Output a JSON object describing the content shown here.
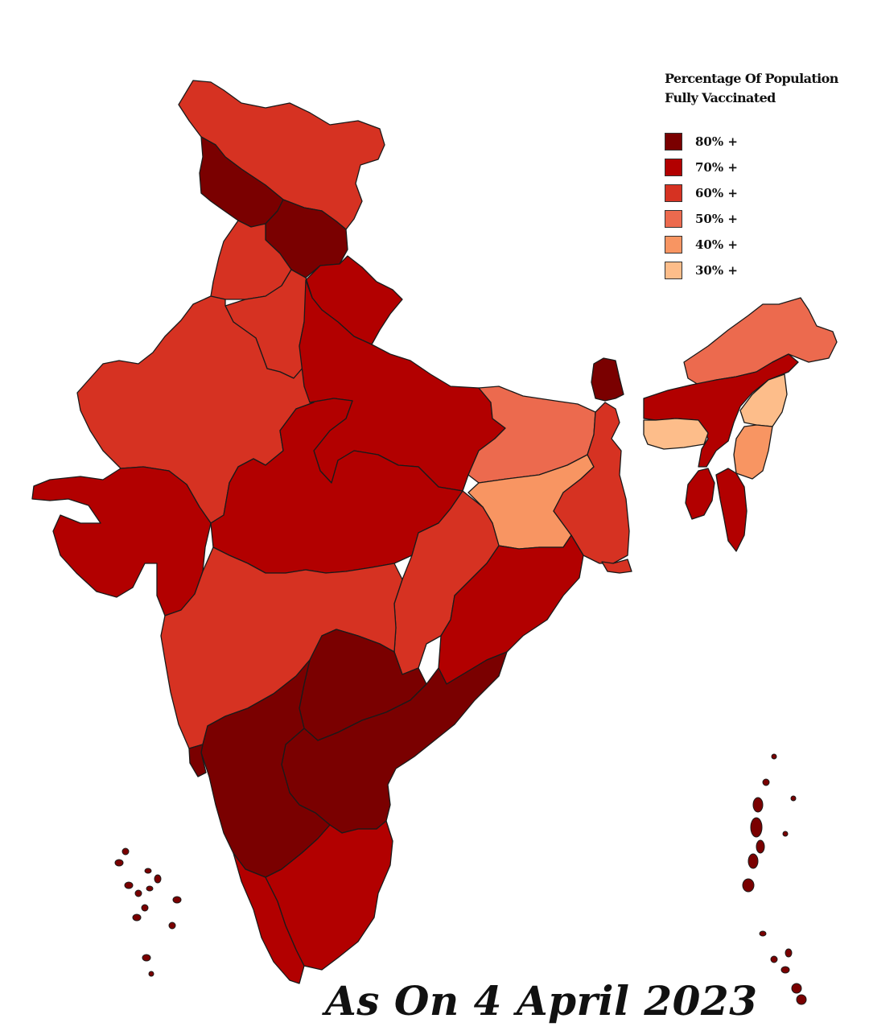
{
  "legend": {
    "title_line1": "Percentage Of Population",
    "title_line2": "Fully Vaccinated",
    "items": [
      {
        "label": "80% +",
        "color": "#7a0000"
      },
      {
        "label": "70% +",
        "color": "#b20000"
      },
      {
        "label": "60% +",
        "color": "#d63222"
      },
      {
        "label": "50% +",
        "color": "#ec6a4e"
      },
      {
        "label": "40% +",
        "color": "#f89562"
      },
      {
        "label": "30% +",
        "color": "#fdbd8a"
      }
    ]
  },
  "caption": "As On 4 April 2023",
  "regions": [
    {
      "id": "ladakh",
      "band": "60% +"
    },
    {
      "id": "jammu-kashmir",
      "band": "80% +"
    },
    {
      "id": "himachal-pradesh",
      "band": "80% +"
    },
    {
      "id": "punjab",
      "band": "60% +"
    },
    {
      "id": "uttarakhand",
      "band": "70% +"
    },
    {
      "id": "haryana",
      "band": "60% +"
    },
    {
      "id": "rajasthan",
      "band": "60% +"
    },
    {
      "id": "gujarat",
      "band": "70% +"
    },
    {
      "id": "uttar-pradesh",
      "band": "70% +"
    },
    {
      "id": "madhya-pradesh",
      "band": "70% +"
    },
    {
      "id": "bihar",
      "band": "50% +"
    },
    {
      "id": "jharkhand",
      "band": "40% +"
    },
    {
      "id": "west-bengal",
      "band": "60% +"
    },
    {
      "id": "chhattisgarh",
      "band": "60% +"
    },
    {
      "id": "odisha",
      "band": "70% +"
    },
    {
      "id": "maharashtra",
      "band": "60% +"
    },
    {
      "id": "telangana",
      "band": "80% +"
    },
    {
      "id": "andhra-pradesh",
      "band": "80% +"
    },
    {
      "id": "karnataka",
      "band": "80% +"
    },
    {
      "id": "goa",
      "band": "80% +"
    },
    {
      "id": "kerala",
      "band": "70% +"
    },
    {
      "id": "tamil-nadu",
      "band": "70% +"
    },
    {
      "id": "sikkim",
      "band": "80% +"
    },
    {
      "id": "arunachal-pradesh",
      "band": "50% +"
    },
    {
      "id": "assam",
      "band": "70% +"
    },
    {
      "id": "meghalaya",
      "band": "30% +"
    },
    {
      "id": "nagaland",
      "band": "30% +"
    },
    {
      "id": "manipur",
      "band": "40% +"
    },
    {
      "id": "tripura",
      "band": "70% +"
    },
    {
      "id": "mizoram",
      "band": "70% +"
    },
    {
      "id": "lakshadweep",
      "band": "80% +"
    },
    {
      "id": "andaman-nicobar",
      "band": "80% +"
    }
  ]
}
